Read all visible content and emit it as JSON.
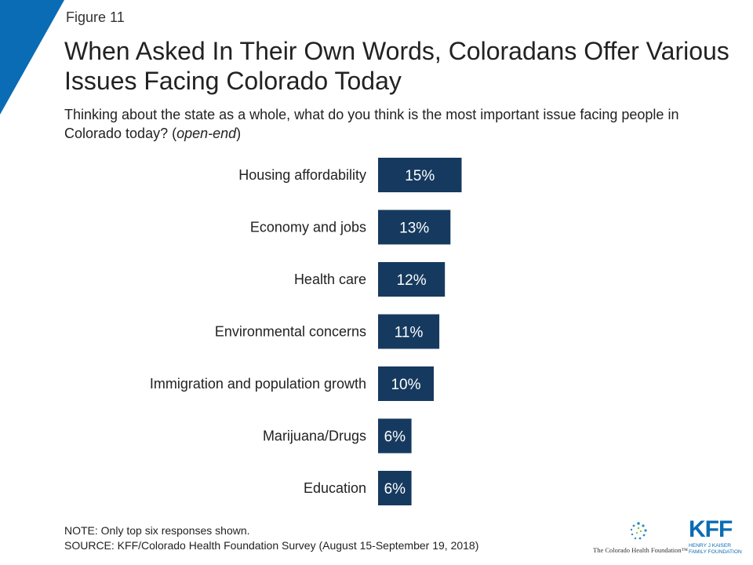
{
  "figure_label": "Figure 11",
  "title": "When Asked In Their Own Words, Coloradans Offer Various Issues Facing Colorado Today",
  "subtitle_main": "Thinking about the state as a whole, what do you think is the most important issue facing people in Colorado today? (",
  "subtitle_italic": "open-end",
  "subtitle_end": ")",
  "colors": {
    "bar": "#163a5f",
    "bar_text": "#ffffff",
    "accent": "#0a6cb5"
  },
  "chart_data": {
    "type": "bar",
    "orientation": "horizontal",
    "categories": [
      "Housing affordability",
      "Economy and jobs",
      "Health care",
      "Environmental concerns",
      "Immigration and population growth",
      "Marijuana/Drugs",
      "Education"
    ],
    "values": [
      15,
      13,
      12,
      11,
      10,
      6,
      6
    ],
    "value_labels": [
      "15%",
      "13%",
      "12%",
      "11%",
      "10%",
      "6%",
      "6%"
    ],
    "xlim": [
      0,
      100
    ],
    "grid": false,
    "legend": "none"
  },
  "note": "NOTE: Only top six responses shown.",
  "source": "SOURCE: KFF/Colorado Health Foundation Survey (August 15-September 19, 2018)",
  "logos": {
    "chf_name": "The Colorado Health Foundation™",
    "kff_mark": "KFF",
    "kff_line1": "HENRY J KAISER",
    "kff_line2": "FAMILY FOUNDATION"
  }
}
